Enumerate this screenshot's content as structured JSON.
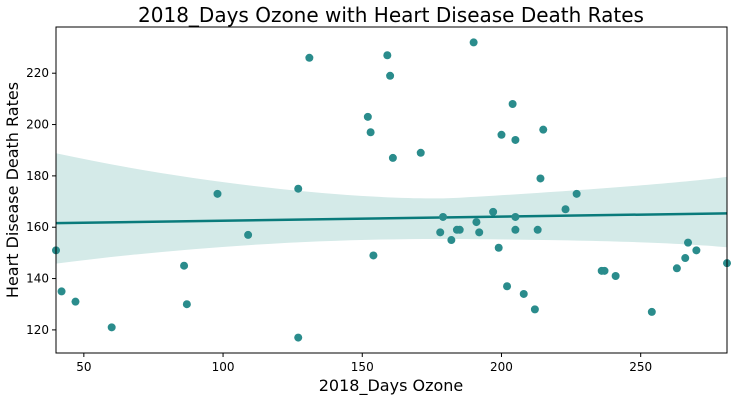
{
  "chart_data": {
    "type": "scatter",
    "title": "2018_Days Ozone with Heart Disease Death Rates",
    "xlabel": "2018_Days Ozone",
    "ylabel": "Heart Disease Death Rates",
    "xlim": [
      40,
      281
    ],
    "ylim": [
      111,
      238
    ],
    "xticks": [
      50,
      100,
      150,
      200,
      250
    ],
    "yticks": [
      120,
      140,
      160,
      180,
      200,
      220
    ],
    "grid": false,
    "legend": "none",
    "colors": {
      "points": "#2a8c8c",
      "line": "#0a7b7b",
      "band": "#d4eae8"
    },
    "points": [
      [
        40,
        151
      ],
      [
        42,
        135
      ],
      [
        47,
        131
      ],
      [
        60,
        121
      ],
      [
        86,
        145
      ],
      [
        87,
        130
      ],
      [
        98,
        173
      ],
      [
        109,
        157
      ],
      [
        127,
        117
      ],
      [
        127,
        175
      ],
      [
        131,
        226
      ],
      [
        152,
        203
      ],
      [
        153,
        197
      ],
      [
        154,
        149
      ],
      [
        159,
        227
      ],
      [
        160,
        219
      ],
      [
        161,
        187
      ],
      [
        171,
        189
      ],
      [
        178,
        158
      ],
      [
        179,
        164
      ],
      [
        182,
        155
      ],
      [
        184,
        159
      ],
      [
        185,
        159
      ],
      [
        190,
        232
      ],
      [
        191,
        162
      ],
      [
        192,
        158
      ],
      [
        197,
        166
      ],
      [
        199,
        152
      ],
      [
        200,
        196
      ],
      [
        202,
        137
      ],
      [
        204,
        208
      ],
      [
        205,
        194
      ],
      [
        205,
        164
      ],
      [
        205,
        159
      ],
      [
        208,
        134
      ],
      [
        212,
        128
      ],
      [
        213,
        159
      ],
      [
        214,
        179
      ],
      [
        215,
        198
      ],
      [
        223,
        167
      ],
      [
        227,
        173
      ],
      [
        236,
        143
      ],
      [
        237,
        143
      ],
      [
        241,
        141
      ],
      [
        254,
        127
      ],
      [
        263,
        144
      ],
      [
        266,
        148
      ],
      [
        267,
        154
      ],
      [
        270,
        151
      ],
      [
        281,
        146
      ]
    ],
    "regression": {
      "x": [
        40,
        281
      ],
      "y": [
        161.6,
        165.4
      ],
      "ci_lower": [
        145.8,
        152.2
      ],
      "ci_upper": [
        188.8,
        179.6
      ]
    }
  }
}
